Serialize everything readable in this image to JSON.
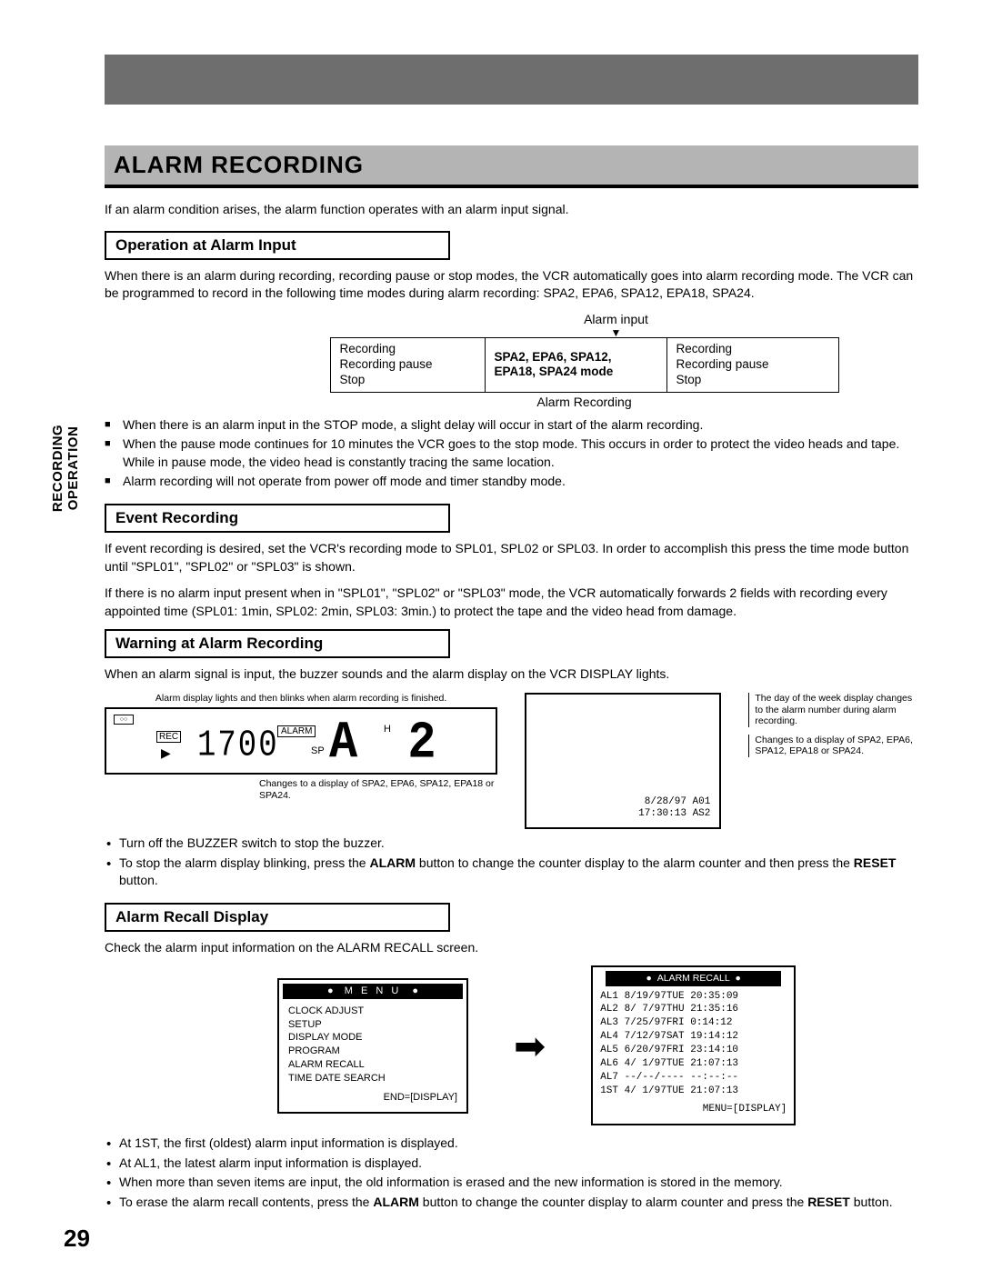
{
  "sidebar": {
    "line1": "RECORDING",
    "line2": "OPERATION"
  },
  "title": "ALARM RECORDING",
  "intro": "If an alarm condition arises, the alarm function operates with an alarm input signal.",
  "s1": {
    "head": "Operation at Alarm Input",
    "p": "When there is an alarm during recording, recording pause or stop modes, the VCR automatically goes into alarm recording mode. The VCR can be programmed to record in the following time modes during alarm recording: SPA2, EPA6, SPA12, EPA18, SPA24.",
    "diag": {
      "top": "Alarm input",
      "left": [
        "Recording",
        "Recording pause",
        "Stop"
      ],
      "mid": [
        "SPA2, EPA6, SPA12,",
        "EPA18, SPA24 mode"
      ],
      "right": [
        "Recording",
        "Recording pause",
        "Stop"
      ],
      "caption": "Alarm Recording"
    },
    "bullets": [
      "When there is an alarm input in the STOP mode, a slight delay will occur in start of the alarm recording.",
      "When the pause mode continues for 10 minutes the VCR goes to the stop mode. This occurs in order to protect the video heads and tape. While in pause mode, the video head is constantly tracing the same location.",
      "Alarm recording will not operate from power off mode and timer standby mode."
    ]
  },
  "s2": {
    "head": "Event Recording",
    "p1": "If event recording is desired, set the VCR's recording mode to SPL01, SPL02 or SPL03. In order to accomplish this press the time mode button until \"SPL01\", \"SPL02\" or \"SPL03\" is shown.",
    "p2": "If there is no alarm input present when in \"SPL01\", \"SPL02\" or \"SPL03\" mode, the VCR automatically forwards 2 fields with recording every appointed time (SPL01: 1min, SPL02: 2min, SPL03: 3min.) to protect the tape and the video head from damage."
  },
  "s3": {
    "head": "Warning at Alarm Recording",
    "p": "When an alarm signal is input, the buzzer sounds and the alarm display on the VCR DISPLAY lights.",
    "vcr": {
      "noteTop": "Alarm display lights and then blinks when alarm recording is finished.",
      "tape": "○○",
      "rec": "REC",
      "play": "▶",
      "alarm": "ALARM",
      "h": "H",
      "sp": "SP",
      "time": "1700",
      "big": "A  2",
      "noteBot": "Changes to a display of SPA2, EPA6, SPA12, EPA18 or SPA24."
    },
    "screen": {
      "l1": "8/28/97 A01",
      "l2": "17:30:13 AS2"
    },
    "side": [
      "The day of the week display changes to the alarm number during alarm recording.",
      "Changes to a display of SPA2, EPA6, SPA12, EPA18 or SPA24."
    ],
    "dots": [
      "Turn off the BUZZER switch to stop the buzzer.",
      "To stop the alarm display blinking, press the ALARM button to change the counter display to the alarm counter and then press the RESET button."
    ]
  },
  "s4": {
    "head": "Alarm Recall Display",
    "p": "Check the alarm input information on the ALARM RECALL screen.",
    "menu": {
      "title": "M E N U",
      "items": [
        "CLOCK ADJUST",
        "SETUP",
        "DISPLAY MODE",
        "PROGRAM",
        "ALARM RECALL",
        "TIME DATE SEARCH"
      ],
      "end": "END=[DISPLAY]"
    },
    "recall": {
      "title": "ALARM RECALL",
      "rows": [
        "AL1  8/19/97TUE 20:35:09",
        "AL2  8/ 7/97THU 21:35:16",
        "AL3  7/25/97FRI  0:14:12",
        "AL4  7/12/97SAT 19:14:12",
        "AL5  6/20/97FRI 23:14:10",
        "AL6  4/ 1/97TUE 21:07:13",
        "AL7 --/--/---- --:--:--",
        "1ST  4/ 1/97TUE 21:07:13"
      ],
      "end": "MENU=[DISPLAY]"
    },
    "dots": [
      "At 1ST, the first (oldest) alarm input information is displayed.",
      "At AL1, the latest alarm input information is displayed.",
      "When more than seven items are input, the old information is erased and the new information is stored in the memory.",
      "To erase the alarm recall contents, press the ALARM button to change the counter display to alarm counter and press the RESET button."
    ]
  },
  "pageNum": "29"
}
